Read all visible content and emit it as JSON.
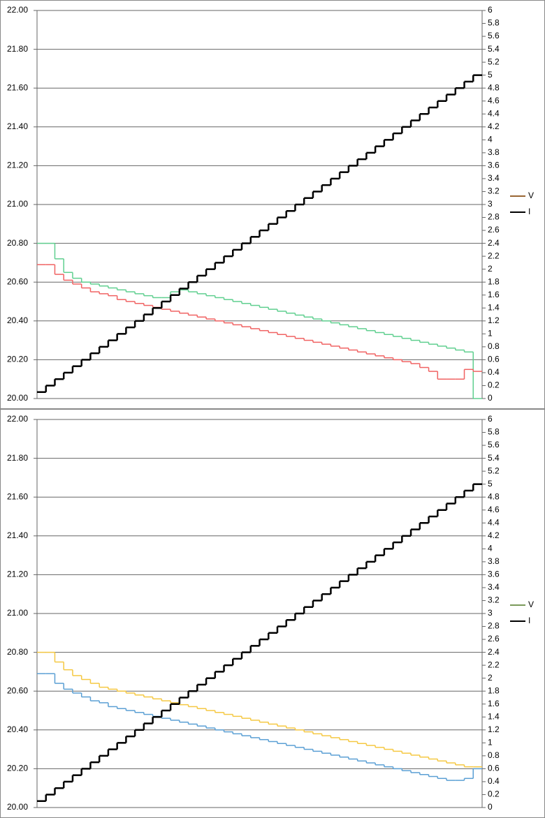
{
  "chart_data": [
    {
      "type": "line",
      "step": true,
      "grid": true,
      "ylim": [
        20,
        22
      ],
      "yticks": [
        {
          "value": 20,
          "label": "20.00"
        },
        {
          "value": 20.2,
          "label": "20.20"
        },
        {
          "value": 20.4,
          "label": "20.40"
        },
        {
          "value": 20.6,
          "label": "20.60"
        },
        {
          "value": 20.8,
          "label": "20.80"
        },
        {
          "value": 21,
          "label": "21.00"
        },
        {
          "value": 21.2,
          "label": "21.20"
        },
        {
          "value": 21.4,
          "label": "21.40"
        },
        {
          "value": 21.6,
          "label": "21.60"
        },
        {
          "value": 21.8,
          "label": "21.80"
        },
        {
          "value": 22,
          "label": "22.00"
        }
      ],
      "y2lim": [
        0,
        6
      ],
      "y2ticks": [
        0,
        0.2,
        0.4,
        0.6,
        0.8,
        1,
        1.2,
        1.4,
        1.6,
        1.8,
        2,
        2.2,
        2.4,
        2.6,
        2.8,
        3,
        3.2,
        3.4,
        3.6,
        3.8,
        4,
        4.2,
        4.4,
        4.6,
        4.8,
        5,
        5.2,
        5.4,
        5.6,
        5.8,
        6
      ],
      "legend": {
        "position": "right",
        "entries": [
          {
            "name": "V",
            "color": "#996633"
          },
          {
            "name": "I",
            "color": "#000000"
          }
        ]
      },
      "series": [
        {
          "color": "#5fcf8f",
          "values": [
            20.8,
            20.8,
            20.72,
            20.65,
            20.62,
            20.6,
            20.59,
            20.58,
            20.57,
            20.56,
            20.55,
            20.54,
            20.53,
            20.52,
            20.52,
            20.55,
            20.56,
            20.55,
            20.54,
            20.53,
            20.52,
            20.51,
            20.5,
            20.49,
            20.48,
            20.47,
            20.46,
            20.45,
            20.44,
            20.43,
            20.42,
            20.41,
            20.4,
            20.39,
            20.38,
            20.37,
            20.36,
            20.35,
            20.34,
            20.33,
            20.32,
            20.31,
            20.3,
            20.29,
            20.28,
            20.27,
            20.26,
            20.25,
            20.24,
            20.0
          ]
        },
        {
          "color": "#f06262",
          "values": [
            20.69,
            20.69,
            20.64,
            20.61,
            20.59,
            20.57,
            20.55,
            20.54,
            20.53,
            20.51,
            20.5,
            20.49,
            20.48,
            20.47,
            20.46,
            20.45,
            20.44,
            20.43,
            20.42,
            20.41,
            20.4,
            20.39,
            20.38,
            20.37,
            20.36,
            20.35,
            20.34,
            20.33,
            20.32,
            20.31,
            20.3,
            20.29,
            20.28,
            20.27,
            20.26,
            20.25,
            20.24,
            20.23,
            20.22,
            20.21,
            20.2,
            20.19,
            20.18,
            20.16,
            20.14,
            20.1,
            20.1,
            20.1,
            20.15,
            20.14
          ]
        },
        {
          "color": "#000000",
          "axis": "y2",
          "values": [
            0.1,
            0.2,
            0.3,
            0.4,
            0.5,
            0.6,
            0.7,
            0.8,
            0.9,
            1.0,
            1.1,
            1.2,
            1.3,
            1.4,
            1.5,
            1.6,
            1.7,
            1.8,
            1.9,
            2.0,
            2.1,
            2.2,
            2.3,
            2.4,
            2.5,
            2.6,
            2.7,
            2.8,
            2.9,
            3.0,
            3.1,
            3.2,
            3.3,
            3.4,
            3.5,
            3.6,
            3.7,
            3.8,
            3.9,
            4.0,
            4.1,
            4.2,
            4.3,
            4.4,
            4.5,
            4.6,
            4.7,
            4.8,
            4.9,
            5.0
          ]
        }
      ]
    },
    {
      "type": "line",
      "step": true,
      "grid": true,
      "ylim": [
        20,
        22
      ],
      "yticks": [
        {
          "value": 20,
          "label": "20.00"
        },
        {
          "value": 20.2,
          "label": "20.20"
        },
        {
          "value": 20.4,
          "label": "20.40"
        },
        {
          "value": 20.6,
          "label": "20.60"
        },
        {
          "value": 20.8,
          "label": "20.80"
        },
        {
          "value": 21,
          "label": "21.00"
        },
        {
          "value": 21.2,
          "label": "21.20"
        },
        {
          "value": 21.4,
          "label": "21.40"
        },
        {
          "value": 21.6,
          "label": "21.60"
        },
        {
          "value": 21.8,
          "label": "21.80"
        },
        {
          "value": 22,
          "label": "22.00"
        }
      ],
      "y2lim": [
        0,
        6
      ],
      "y2ticks": [
        0,
        0.2,
        0.4,
        0.6,
        0.8,
        1,
        1.2,
        1.4,
        1.6,
        1.8,
        2,
        2.2,
        2.4,
        2.6,
        2.8,
        3,
        3.2,
        3.4,
        3.6,
        3.8,
        4,
        4.2,
        4.4,
        4.6,
        4.8,
        5,
        5.2,
        5.4,
        5.6,
        5.8,
        6
      ],
      "legend": {
        "position": "right",
        "entries": [
          {
            "name": "V",
            "color": "#7a9a5a"
          },
          {
            "name": "I",
            "color": "#000000"
          }
        ]
      },
      "series": [
        {
          "color": "#f5c842",
          "values": [
            20.8,
            20.8,
            20.75,
            20.71,
            20.68,
            20.66,
            20.64,
            20.62,
            20.61,
            20.6,
            20.59,
            20.58,
            20.57,
            20.56,
            20.55,
            20.54,
            20.53,
            20.52,
            20.51,
            20.5,
            20.49,
            20.48,
            20.47,
            20.46,
            20.45,
            20.44,
            20.43,
            20.42,
            20.41,
            20.4,
            20.39,
            20.38,
            20.37,
            20.36,
            20.35,
            20.34,
            20.33,
            20.32,
            20.31,
            20.3,
            20.29,
            20.28,
            20.27,
            20.26,
            20.25,
            20.24,
            20.23,
            20.22,
            20.21,
            20.21
          ]
        },
        {
          "color": "#5a9fd4",
          "values": [
            20.69,
            20.69,
            20.64,
            20.61,
            20.59,
            20.57,
            20.55,
            20.54,
            20.52,
            20.51,
            20.5,
            20.49,
            20.48,
            20.47,
            20.46,
            20.45,
            20.44,
            20.43,
            20.42,
            20.41,
            20.4,
            20.39,
            20.38,
            20.37,
            20.36,
            20.35,
            20.34,
            20.33,
            20.32,
            20.31,
            20.3,
            20.29,
            20.28,
            20.27,
            20.26,
            20.25,
            20.24,
            20.23,
            20.22,
            20.21,
            20.2,
            20.19,
            20.18,
            20.17,
            20.16,
            20.15,
            20.14,
            20.14,
            20.15,
            20.2
          ]
        },
        {
          "color": "#000000",
          "axis": "y2",
          "values": [
            0.1,
            0.2,
            0.3,
            0.4,
            0.5,
            0.6,
            0.7,
            0.8,
            0.9,
            1.0,
            1.1,
            1.2,
            1.3,
            1.4,
            1.5,
            1.6,
            1.7,
            1.8,
            1.9,
            2.0,
            2.1,
            2.2,
            2.3,
            2.4,
            2.5,
            2.6,
            2.7,
            2.8,
            2.9,
            3.0,
            3.1,
            3.2,
            3.3,
            3.4,
            3.5,
            3.6,
            3.7,
            3.8,
            3.9,
            4.0,
            4.1,
            4.2,
            4.3,
            4.4,
            4.5,
            4.6,
            4.7,
            4.8,
            4.9,
            5.0
          ]
        }
      ]
    }
  ]
}
